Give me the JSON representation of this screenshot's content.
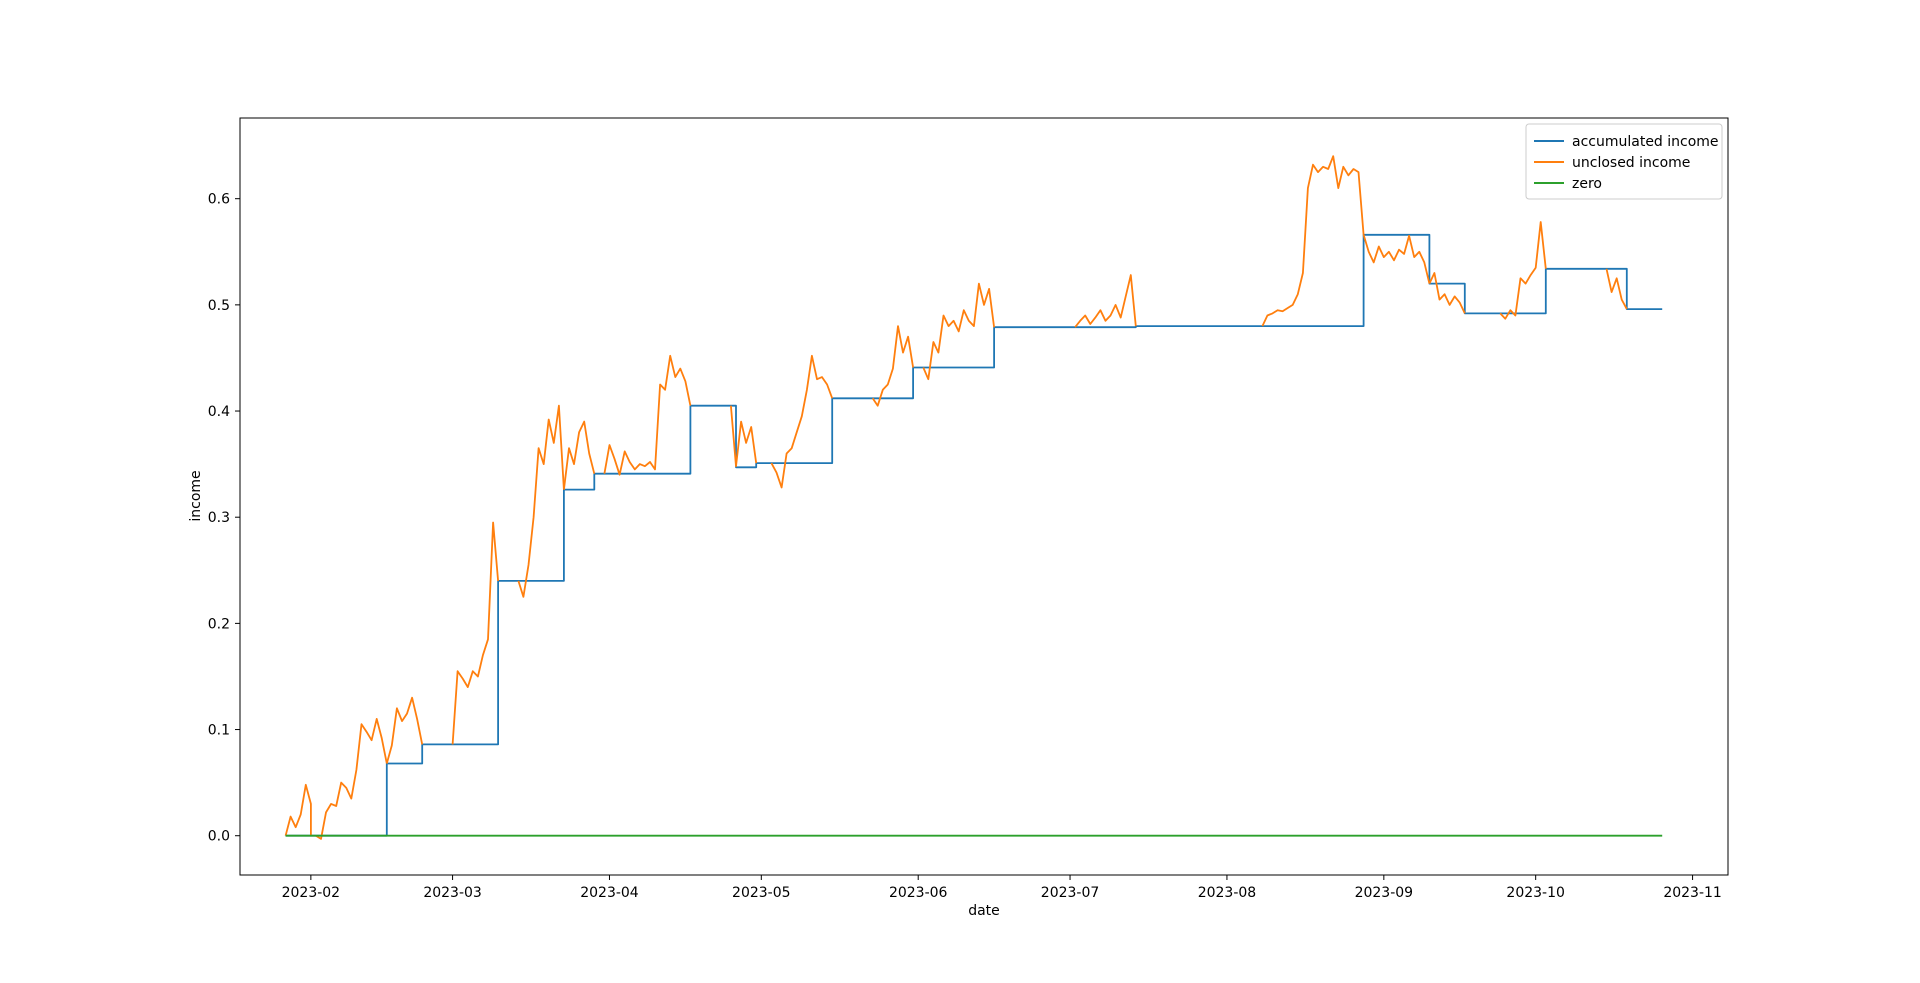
{
  "chart_data": {
    "type": "line",
    "title": "",
    "xlabel": "date",
    "ylabel": "income",
    "x_ticks": [
      "2023-02",
      "2023-03",
      "2023-04",
      "2023-05",
      "2023-06",
      "2023-07",
      "2023-08",
      "2023-09",
      "2023-10",
      "2023-11"
    ],
    "y_ticks": [
      "0.0",
      "0.1",
      "0.2",
      "0.3",
      "0.4",
      "0.5",
      "0.6"
    ],
    "xlim": [
      "2023-01-18",
      "2023-11-08"
    ],
    "ylim": [
      -0.037,
      0.676
    ],
    "grid": false,
    "legend": "top-right",
    "series": [
      {
        "name": "accumulated income",
        "color": "#1f77b4",
        "style": "step",
        "points": [
          [
            "2023-01-27",
            0.0
          ],
          [
            "2023-02-16",
            0.0
          ],
          [
            "2023-02-16",
            0.068
          ],
          [
            "2023-02-23",
            0.068
          ],
          [
            "2023-02-23",
            0.086
          ],
          [
            "2023-03-10",
            0.086
          ],
          [
            "2023-03-10",
            0.24
          ],
          [
            "2023-03-23",
            0.24
          ],
          [
            "2023-03-23",
            0.326
          ],
          [
            "2023-03-29",
            0.326
          ],
          [
            "2023-03-29",
            0.341
          ],
          [
            "2023-04-17",
            0.341
          ],
          [
            "2023-04-17",
            0.405
          ],
          [
            "2023-04-26",
            0.405
          ],
          [
            "2023-04-26",
            0.347
          ],
          [
            "2023-04-30",
            0.347
          ],
          [
            "2023-04-30",
            0.351
          ],
          [
            "2023-05-15",
            0.351
          ],
          [
            "2023-05-15",
            0.412
          ],
          [
            "2023-05-31",
            0.412
          ],
          [
            "2023-05-31",
            0.441
          ],
          [
            "2023-06-16",
            0.441
          ],
          [
            "2023-06-16",
            0.479
          ],
          [
            "2023-07-14",
            0.479
          ],
          [
            "2023-07-14",
            0.48
          ],
          [
            "2023-08-28",
            0.48
          ],
          [
            "2023-08-28",
            0.566
          ],
          [
            "2023-09-10",
            0.566
          ],
          [
            "2023-09-10",
            0.52
          ],
          [
            "2023-09-17",
            0.52
          ],
          [
            "2023-09-17",
            0.492
          ],
          [
            "2023-10-03",
            0.492
          ],
          [
            "2023-10-03",
            0.534
          ],
          [
            "2023-10-19",
            0.534
          ],
          [
            "2023-10-19",
            0.496
          ],
          [
            "2023-10-26",
            0.496
          ]
        ]
      },
      {
        "name": "unclosed income",
        "color": "#ff7f0e",
        "style": "line",
        "segments": [
          [
            [
              "2023-01-27",
              0.0
            ],
            [
              "2023-01-28",
              0.018
            ],
            [
              "2023-01-29",
              0.008
            ],
            [
              "2023-01-30",
              0.02
            ],
            [
              "2023-01-31",
              0.048
            ],
            [
              "2023-02-01",
              0.03
            ],
            [
              "2023-02-01",
              0.0
            ]
          ],
          [
            [
              "2023-02-02",
              0.0
            ],
            [
              "2023-02-03",
              -0.003
            ],
            [
              "2023-02-04",
              0.022
            ],
            [
              "2023-02-05",
              0.03
            ],
            [
              "2023-02-06",
              0.028
            ],
            [
              "2023-02-07",
              0.05
            ],
            [
              "2023-02-08",
              0.045
            ],
            [
              "2023-02-09",
              0.035
            ],
            [
              "2023-02-10",
              0.062
            ],
            [
              "2023-02-11",
              0.105
            ],
            [
              "2023-02-12",
              0.098
            ],
            [
              "2023-02-13",
              0.09
            ],
            [
              "2023-02-14",
              0.11
            ],
            [
              "2023-02-15",
              0.092
            ],
            [
              "2023-02-16",
              0.068
            ]
          ],
          [
            [
              "2023-02-16",
              0.068
            ],
            [
              "2023-02-17",
              0.085
            ],
            [
              "2023-02-18",
              0.12
            ],
            [
              "2023-02-19",
              0.108
            ],
            [
              "2023-02-20",
              0.115
            ],
            [
              "2023-02-21",
              0.13
            ],
            [
              "2023-02-22",
              0.11
            ],
            [
              "2023-02-23",
              0.086
            ]
          ],
          [
            [
              "2023-03-01",
              0.086
            ],
            [
              "2023-03-02",
              0.155
            ],
            [
              "2023-03-03",
              0.148
            ],
            [
              "2023-03-04",
              0.14
            ],
            [
              "2023-03-05",
              0.155
            ],
            [
              "2023-03-06",
              0.15
            ],
            [
              "2023-03-07",
              0.17
            ],
            [
              "2023-03-08",
              0.185
            ],
            [
              "2023-03-09",
              0.295
            ],
            [
              "2023-03-10",
              0.24
            ]
          ],
          [
            [
              "2023-03-14",
              0.24
            ],
            [
              "2023-03-15",
              0.225
            ],
            [
              "2023-03-16",
              0.255
            ],
            [
              "2023-03-17",
              0.3
            ],
            [
              "2023-03-18",
              0.365
            ],
            [
              "2023-03-19",
              0.35
            ],
            [
              "2023-03-20",
              0.392
            ],
            [
              "2023-03-21",
              0.37
            ],
            [
              "2023-03-22",
              0.405
            ],
            [
              "2023-03-23",
              0.326
            ]
          ],
          [
            [
              "2023-03-23",
              0.326
            ],
            [
              "2023-03-24",
              0.365
            ],
            [
              "2023-03-25",
              0.35
            ],
            [
              "2023-03-26",
              0.38
            ],
            [
              "2023-03-27",
              0.39
            ],
            [
              "2023-03-28",
              0.36
            ],
            [
              "2023-03-29",
              0.341
            ]
          ],
          [
            [
              "2023-03-31",
              0.341
            ],
            [
              "2023-04-01",
              0.368
            ],
            [
              "2023-04-02",
              0.355
            ],
            [
              "2023-04-03",
              0.34
            ],
            [
              "2023-04-04",
              0.362
            ],
            [
              "2023-04-05",
              0.352
            ],
            [
              "2023-04-06",
              0.345
            ],
            [
              "2023-04-07",
              0.35
            ],
            [
              "2023-04-08",
              0.348
            ],
            [
              "2023-04-09",
              0.352
            ],
            [
              "2023-04-10",
              0.345
            ],
            [
              "2023-04-11",
              0.425
            ],
            [
              "2023-04-12",
              0.42
            ],
            [
              "2023-04-13",
              0.452
            ],
            [
              "2023-04-14",
              0.432
            ],
            [
              "2023-04-15",
              0.44
            ],
            [
              "2023-04-16",
              0.428
            ],
            [
              "2023-04-17",
              0.405
            ]
          ],
          [
            [
              "2023-04-25",
              0.405
            ],
            [
              "2023-04-26",
              0.348
            ],
            [
              "2023-04-27",
              0.39
            ],
            [
              "2023-04-28",
              0.37
            ],
            [
              "2023-04-29",
              0.385
            ],
            [
              "2023-04-30",
              0.351
            ]
          ],
          [
            [
              "2023-05-03",
              0.351
            ],
            [
              "2023-05-04",
              0.342
            ],
            [
              "2023-05-05",
              0.328
            ],
            [
              "2023-05-06",
              0.36
            ],
            [
              "2023-05-07",
              0.365
            ],
            [
              "2023-05-08",
              0.38
            ],
            [
              "2023-05-09",
              0.395
            ],
            [
              "2023-05-10",
              0.42
            ],
            [
              "2023-05-11",
              0.452
            ],
            [
              "2023-05-12",
              0.43
            ],
            [
              "2023-05-13",
              0.432
            ],
            [
              "2023-05-14",
              0.425
            ],
            [
              "2023-05-15",
              0.412
            ]
          ],
          [
            [
              "2023-05-23",
              0.412
            ],
            [
              "2023-05-24",
              0.405
            ],
            [
              "2023-05-25",
              0.42
            ],
            [
              "2023-05-26",
              0.425
            ],
            [
              "2023-05-27",
              0.44
            ],
            [
              "2023-05-28",
              0.48
            ],
            [
              "2023-05-29",
              0.455
            ],
            [
              "2023-05-30",
              0.47
            ],
            [
              "2023-05-31",
              0.441
            ]
          ],
          [
            [
              "2023-06-02",
              0.441
            ],
            [
              "2023-06-03",
              0.43
            ],
            [
              "2023-06-04",
              0.465
            ],
            [
              "2023-06-05",
              0.455
            ],
            [
              "2023-06-06",
              0.49
            ],
            [
              "2023-06-07",
              0.48
            ],
            [
              "2023-06-08",
              0.485
            ],
            [
              "2023-06-09",
              0.475
            ],
            [
              "2023-06-10",
              0.495
            ],
            [
              "2023-06-11",
              0.485
            ],
            [
              "2023-06-12",
              0.48
            ],
            [
              "2023-06-13",
              0.52
            ],
            [
              "2023-06-14",
              0.5
            ],
            [
              "2023-06-15",
              0.515
            ],
            [
              "2023-06-16",
              0.479
            ]
          ],
          [
            [
              "2023-07-02",
              0.479
            ],
            [
              "2023-07-03",
              0.485
            ],
            [
              "2023-07-04",
              0.49
            ],
            [
              "2023-07-05",
              0.482
            ],
            [
              "2023-07-06",
              0.488
            ],
            [
              "2023-07-07",
              0.495
            ],
            [
              "2023-07-08",
              0.485
            ],
            [
              "2023-07-09",
              0.49
            ],
            [
              "2023-07-10",
              0.5
            ],
            [
              "2023-07-11",
              0.488
            ],
            [
              "2023-07-12",
              0.508
            ],
            [
              "2023-07-13",
              0.528
            ],
            [
              "2023-07-14",
              0.48
            ]
          ],
          [
            [
              "2023-08-08",
              0.48
            ],
            [
              "2023-08-09",
              0.49
            ],
            [
              "2023-08-10",
              0.492
            ],
            [
              "2023-08-11",
              0.495
            ],
            [
              "2023-08-12",
              0.494
            ],
            [
              "2023-08-13",
              0.497
            ],
            [
              "2023-08-14",
              0.5
            ],
            [
              "2023-08-15",
              0.51
            ],
            [
              "2023-08-16",
              0.53
            ],
            [
              "2023-08-17",
              0.61
            ],
            [
              "2023-08-18",
              0.632
            ],
            [
              "2023-08-19",
              0.625
            ],
            [
              "2023-08-20",
              0.63
            ],
            [
              "2023-08-21",
              0.628
            ],
            [
              "2023-08-22",
              0.64
            ],
            [
              "2023-08-23",
              0.61
            ],
            [
              "2023-08-24",
              0.63
            ],
            [
              "2023-08-25",
              0.622
            ],
            [
              "2023-08-26",
              0.628
            ],
            [
              "2023-08-27",
              0.625
            ],
            [
              "2023-08-28",
              0.566
            ]
          ],
          [
            [
              "2023-08-28",
              0.566
            ],
            [
              "2023-08-29",
              0.55
            ],
            [
              "2023-08-30",
              0.54
            ],
            [
              "2023-08-31",
              0.555
            ],
            [
              "2023-09-01",
              0.545
            ],
            [
              "2023-09-02",
              0.55
            ],
            [
              "2023-09-03",
              0.542
            ],
            [
              "2023-09-04",
              0.552
            ],
            [
              "2023-09-05",
              0.548
            ],
            [
              "2023-09-06",
              0.565
            ],
            [
              "2023-09-07",
              0.545
            ],
            [
              "2023-09-08",
              0.55
            ],
            [
              "2023-09-09",
              0.54
            ],
            [
              "2023-09-10",
              0.52
            ]
          ],
          [
            [
              "2023-09-10",
              0.52
            ],
            [
              "2023-09-11",
              0.53
            ],
            [
              "2023-09-12",
              0.505
            ],
            [
              "2023-09-13",
              0.51
            ],
            [
              "2023-09-14",
              0.5
            ],
            [
              "2023-09-15",
              0.508
            ],
            [
              "2023-09-16",
              0.502
            ],
            [
              "2023-09-17",
              0.492
            ]
          ],
          [
            [
              "2023-09-24",
              0.492
            ],
            [
              "2023-09-25",
              0.487
            ],
            [
              "2023-09-26",
              0.495
            ],
            [
              "2023-09-27",
              0.49
            ],
            [
              "2023-09-28",
              0.525
            ],
            [
              "2023-09-29",
              0.52
            ],
            [
              "2023-09-30",
              0.528
            ],
            [
              "2023-10-01",
              0.535
            ],
            [
              "2023-10-02",
              0.578
            ],
            [
              "2023-10-03",
              0.534
            ]
          ],
          [
            [
              "2023-10-15",
              0.534
            ],
            [
              "2023-10-16",
              0.512
            ],
            [
              "2023-10-17",
              0.525
            ],
            [
              "2023-10-18",
              0.505
            ],
            [
              "2023-10-19",
              0.496
            ]
          ]
        ]
      },
      {
        "name": "zero",
        "color": "#2ca02c",
        "style": "line",
        "points": [
          [
            "2023-01-27",
            0.0
          ],
          [
            "2023-10-26",
            0.0
          ]
        ]
      }
    ]
  }
}
